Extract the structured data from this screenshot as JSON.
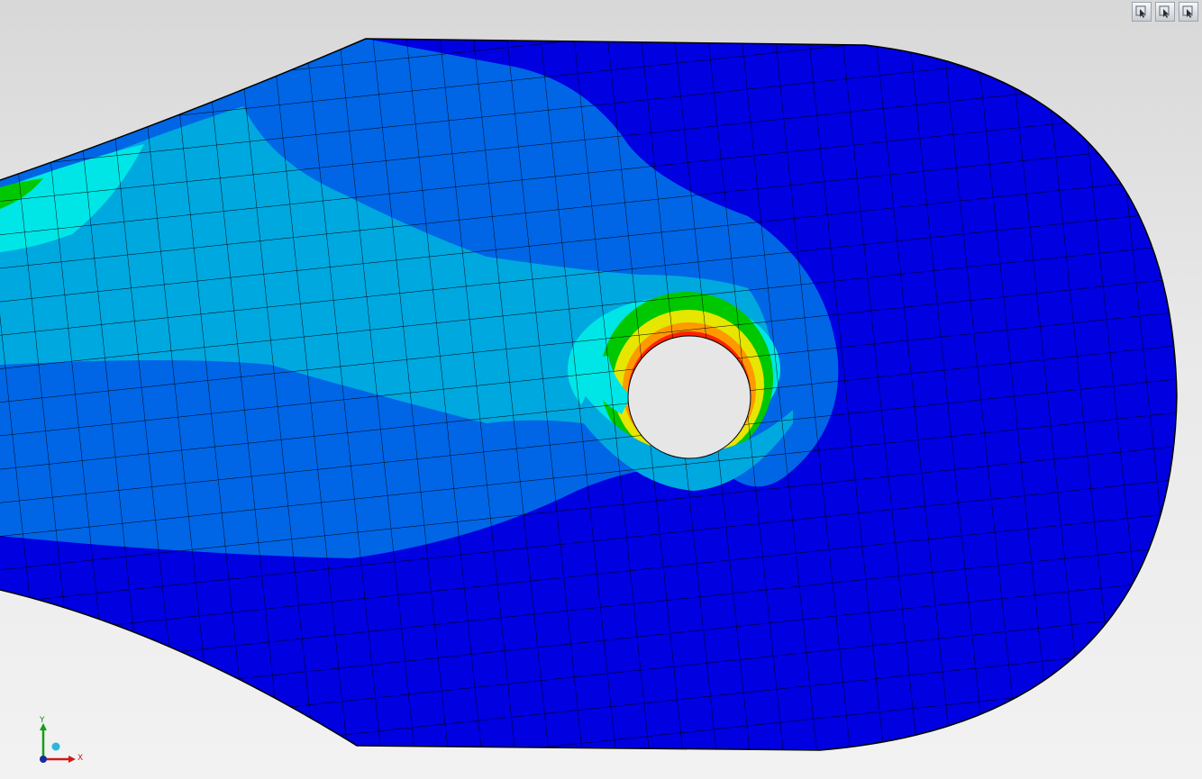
{
  "triad": {
    "y_label": "Y",
    "x_label": "X"
  },
  "toolbar": {
    "buttons": [
      {
        "icon": "view-select-icon"
      },
      {
        "icon": "view-select-icon"
      },
      {
        "icon": "view-select-icon"
      }
    ]
  },
  "colors": {
    "background_top": "#d8d8d8",
    "background_bottom": "#f2f2f2",
    "contour_low": "#0000e0",
    "contour_2": "#0066e6",
    "contour_3": "#00a8e0",
    "contour_4": "#00e6e6",
    "contour_5": "#00c800",
    "contour_6": "#e6e600",
    "contour_7": "#ff9900",
    "contour_high": "#ff2200",
    "mesh_lines": "#000000",
    "hole": "#e6e6e6"
  }
}
